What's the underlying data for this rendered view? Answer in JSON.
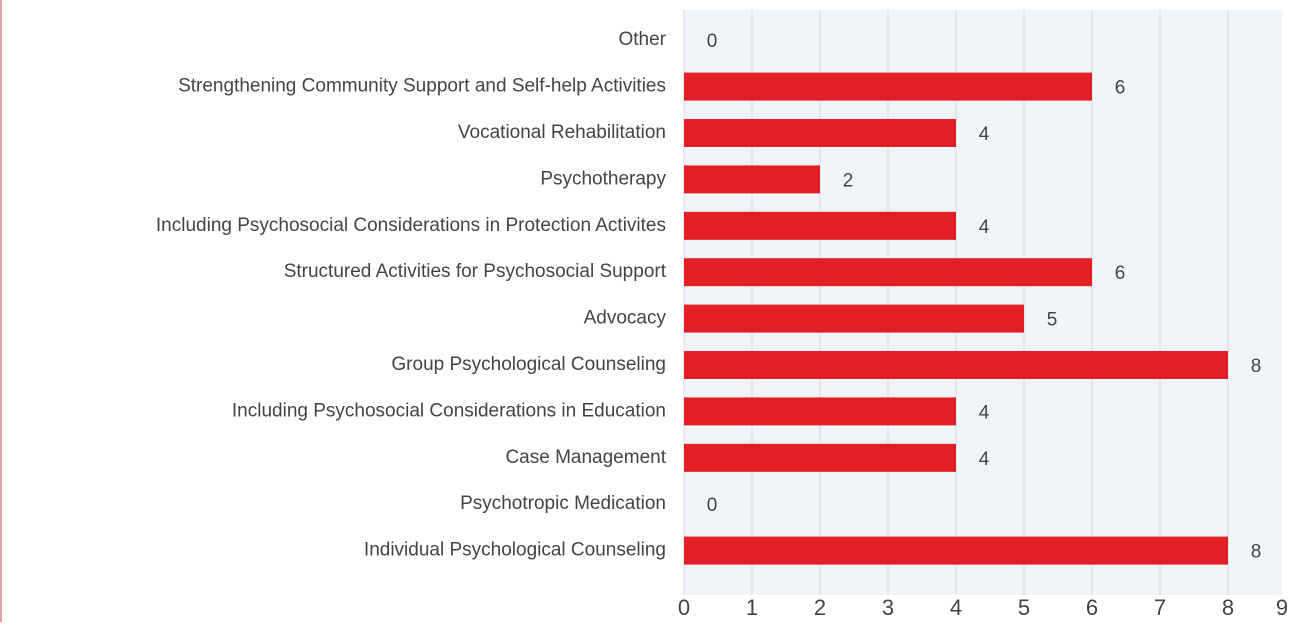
{
  "chart_data": {
    "type": "barh",
    "categories": [
      "Other",
      "Strengthening Community Support and Self-help Activities",
      "Vocational Rehabilitation",
      "Psychotherapy",
      "Including Psychosocial Considerations in Protection Activites",
      "Structured Activities for Psychosocial Support",
      "Advocacy",
      "Group Psychological Counseling",
      "Including Psychosocial Considerations in Education",
      "Case Management",
      "Psychotropic Medication",
      "Individual Psychological Counseling"
    ],
    "values": [
      0,
      6,
      4,
      2,
      4,
      6,
      5,
      8,
      4,
      4,
      0,
      8
    ],
    "color": "#e31e24",
    "xlim": [
      0,
      9
    ],
    "xticks": [
      0,
      1,
      2,
      3,
      4,
      5,
      6,
      7,
      8,
      9
    ],
    "grid": true
  }
}
